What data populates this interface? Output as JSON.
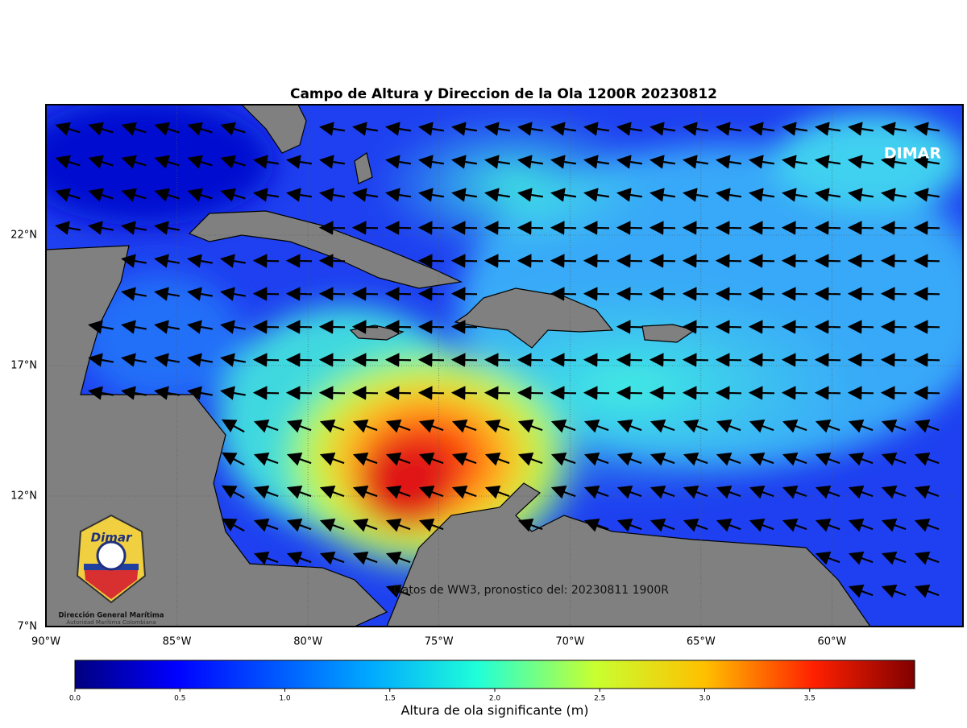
{
  "map": {
    "title": "Campo de Altura y Direccion de la Ola 1200R 20230812",
    "watermark": "DIMAR",
    "source_note": "Datos de WW3, pronostico del: 20230811 1900R",
    "logo": {
      "name": "Dimar",
      "line1": "Dirección General Marítima",
      "line2": "Autoridad Marítima Colombiana"
    },
    "xlim": [
      -90,
      -55
    ],
    "ylim": [
      7,
      27
    ],
    "xticks": [
      {
        "value": -90,
        "label": "90°W"
      },
      {
        "value": -85,
        "label": "85°W"
      },
      {
        "value": -80,
        "label": "80°W"
      },
      {
        "value": -75,
        "label": "75°W"
      },
      {
        "value": -70,
        "label": "70°W"
      },
      {
        "value": -65,
        "label": "65°W"
      },
      {
        "value": -60,
        "label": "60°W"
      }
    ],
    "yticks": [
      {
        "value": 7,
        "label": "7°N"
      },
      {
        "value": 12,
        "label": "12°N"
      },
      {
        "value": 17,
        "label": "17°N"
      },
      {
        "value": 22,
        "label": "22°N"
      }
    ],
    "colorbar": {
      "label": "Altura de ola significante (m)",
      "lim": [
        0,
        4
      ],
      "ticks": [
        {
          "value": 0,
          "label": "0.0"
        },
        {
          "value": 0.5,
          "label": "0.5"
        },
        {
          "value": 1,
          "label": "1.0"
        },
        {
          "value": 1.5,
          "label": "1.5"
        },
        {
          "value": 2,
          "label": "2.0"
        },
        {
          "value": 2.5,
          "label": "2.5"
        },
        {
          "value": 3,
          "label": "3.0"
        },
        {
          "value": 3.5,
          "label": "3.5"
        }
      ]
    }
  }
}
